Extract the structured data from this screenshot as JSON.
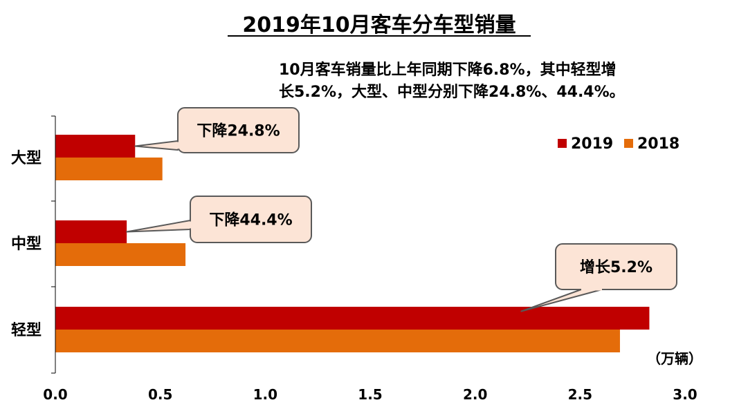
{
  "chart_data": {
    "type": "bar",
    "orientation": "horizontal",
    "title": "2019年10月客车分车型销量",
    "subtitle_lines": [
      "10月客车销量比上年同期下降6.8%，其中轻型增",
      "长5.2%，大型、中型分别下降24.8%、44.4%。"
    ],
    "categories": [
      "大型",
      "中型",
      "轻型"
    ],
    "series": [
      {
        "name": "2019",
        "color": "#C00000",
        "values": [
          0.38,
          0.34,
          2.83
        ]
      },
      {
        "name": "2018",
        "color": "#E46C0A",
        "values": [
          0.51,
          0.62,
          2.69
        ]
      }
    ],
    "xlim": [
      0,
      3.0
    ],
    "xticks": [
      "0.0",
      "0.5",
      "1.0",
      "1.5",
      "2.0",
      "2.5",
      "3.0"
    ],
    "unit_label": "（万辆）",
    "legend_position": "top-right",
    "grid": false,
    "annotations": [
      {
        "text": "下降24.8%",
        "category_index": 0,
        "series_index": 0
      },
      {
        "text": "下降44.4%",
        "category_index": 1,
        "series_index": 0
      },
      {
        "text": "增长5.2%",
        "category_index": 2,
        "series_index": 0
      }
    ],
    "annotation_style": {
      "fill": "#FCE4D6",
      "stroke": "#595959"
    }
  }
}
